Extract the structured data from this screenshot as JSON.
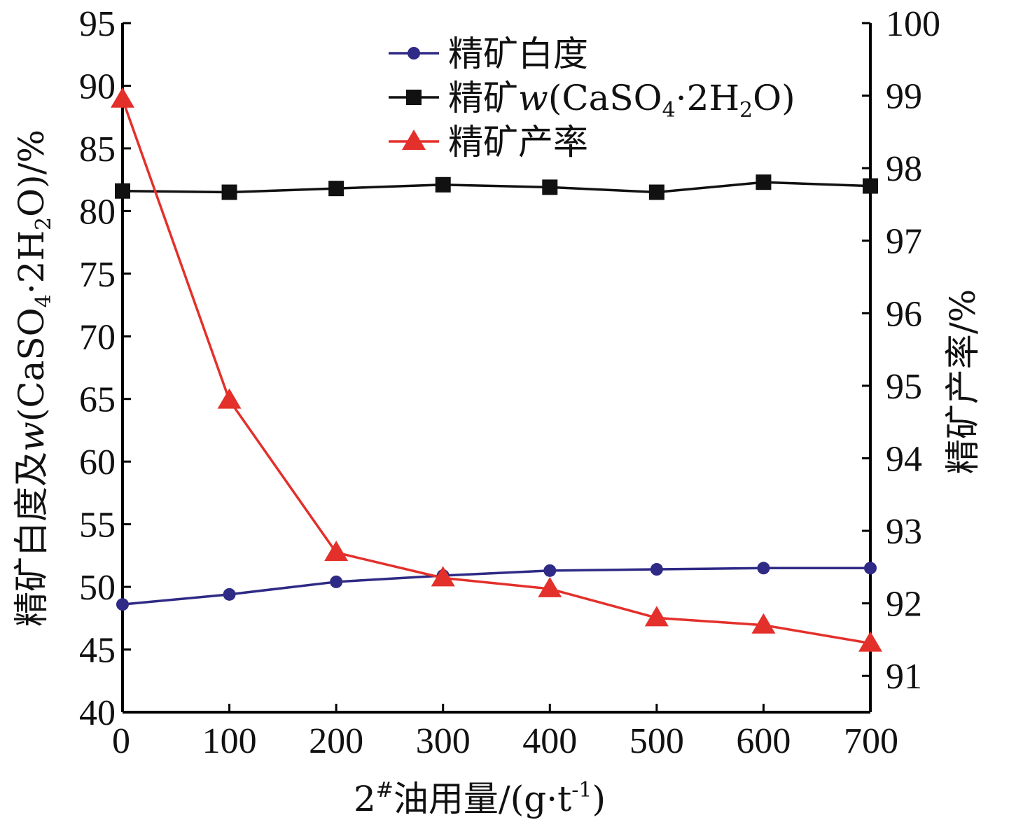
{
  "chart_data": {
    "type": "line",
    "x": [
      0,
      100,
      200,
      300,
      400,
      500,
      600,
      700
    ],
    "x_tick_labels": [
      "0",
      "100",
      "200",
      "300",
      "400",
      "500",
      "600",
      "700"
    ],
    "xlabel": "2#油用量/(g·t-1)",
    "xlabel_parts": {
      "pre": "2",
      "sup": "#",
      "mid": "油用量/(g·t",
      "sup2": "-1",
      "post": ")"
    },
    "xlim": [
      0,
      700
    ],
    "ylabel_left": "精矿白度及w(CaSO4·2H2O)/%",
    "ylabel_left_parts": {
      "pre": "精矿白度及",
      "italic": "w",
      "a": "(CaSO",
      "sub1": "4",
      "b": "·2H",
      "sub2": "2",
      "c": "O)/%"
    },
    "ylim_left": [
      40,
      95
    ],
    "y_left_ticks": [
      "40",
      "45",
      "50",
      "55",
      "60",
      "65",
      "70",
      "75",
      "80",
      "85",
      "90",
      "95"
    ],
    "ylabel_right": "精矿产率/%",
    "ylim_right": [
      90.5,
      100
    ],
    "y_right_ticks": [
      "91",
      "92",
      "93",
      "94",
      "95",
      "96",
      "97",
      "98",
      "99",
      "100"
    ],
    "grid": false,
    "legend_position": "top-center",
    "series": [
      {
        "name": "精矿白度",
        "legend_parts": {
          "pre": "精矿白度"
        },
        "axis": "left",
        "marker": "circle",
        "color": "#2e2a85",
        "values": [
          48.6,
          49.4,
          50.4,
          50.9,
          51.3,
          51.4,
          51.5,
          51.5
        ]
      },
      {
        "name": "精矿w(CaSO4·2H2O)",
        "legend_parts": {
          "pre": "精矿",
          "italic": "w",
          "a": "(CaSO",
          "sub1": "4",
          "b": "·2H",
          "sub2": "2",
          "c": "O)"
        },
        "axis": "left",
        "marker": "square",
        "color": "#111111",
        "values": [
          81.6,
          81.5,
          81.8,
          82.1,
          81.9,
          81.5,
          82.3,
          82.0
        ]
      },
      {
        "name": "精矿产率",
        "legend_parts": {
          "pre": "精矿产率"
        },
        "axis": "right",
        "marker": "triangle",
        "color": "#e3302b",
        "values": [
          98.95,
          94.8,
          92.7,
          92.35,
          92.2,
          91.8,
          91.7,
          91.45
        ]
      }
    ]
  }
}
